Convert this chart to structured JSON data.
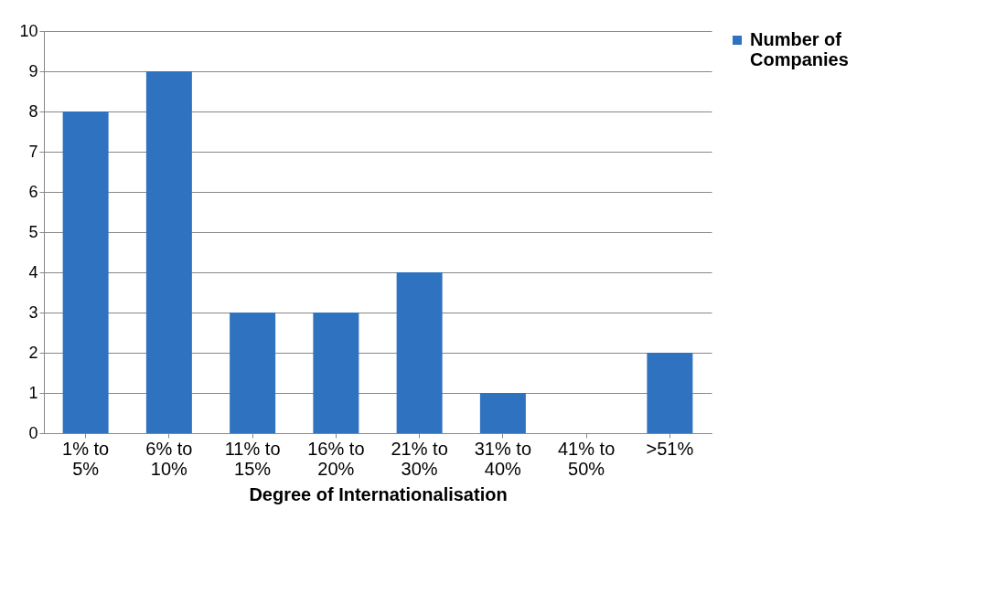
{
  "chart_data": {
    "type": "bar",
    "xlabel": "Degree of Internationalisation",
    "categories": [
      "1% to 5%",
      "6% to 10%",
      "11% to 15%",
      "16% to 20%",
      "21% to 30%",
      "31% to 40%",
      "41% to 50%",
      ">51%"
    ],
    "series": [
      {
        "name": "Number of Companies",
        "color": "#2f73c0",
        "values": [
          8,
          9,
          3,
          3,
          4,
          1,
          0,
          2
        ]
      }
    ],
    "ylim": [
      0,
      10
    ],
    "yticks": [
      0,
      1,
      2,
      3,
      4,
      5,
      6,
      7,
      8,
      9,
      10
    ],
    "grid": "y",
    "legend": "right"
  }
}
